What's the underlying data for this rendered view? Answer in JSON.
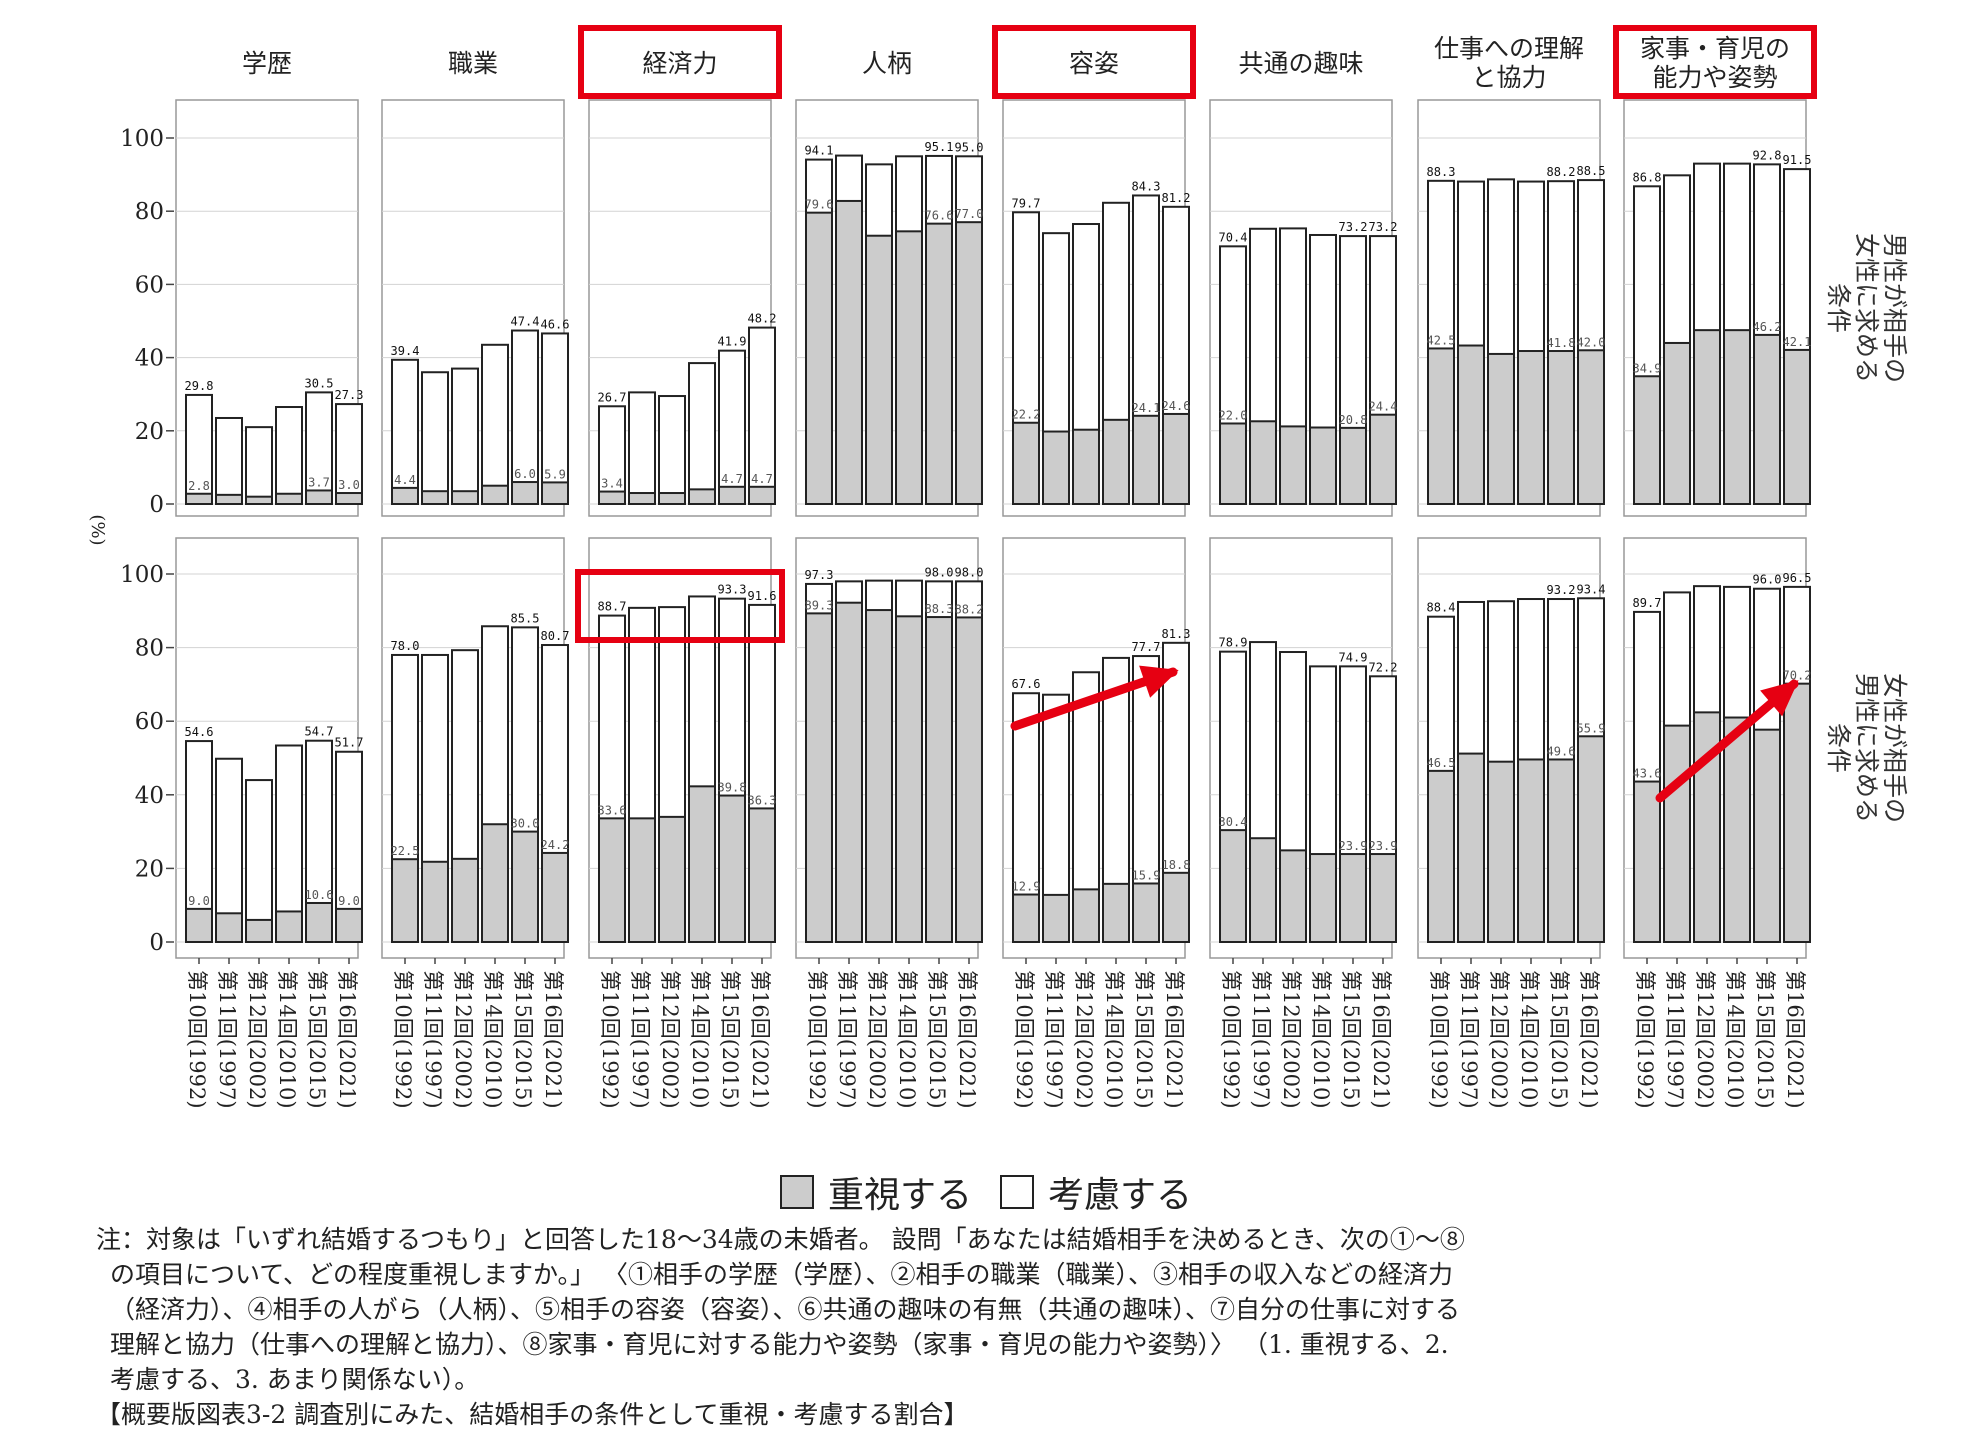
{
  "chart_data": {
    "type": "bar",
    "y_axis_label": "(%)",
    "ylim": [
      0,
      110
    ],
    "y_ticks": [
      0,
      20,
      40,
      60,
      80,
      100
    ],
    "x_categories": [
      "第10回(1992)",
      "第11回(1997)",
      "第12回(2002)",
      "第14回(2010)",
      "第15回(2015)",
      "第16回(2021)"
    ],
    "panels": [
      {
        "label": "学歴",
        "highlighted": false
      },
      {
        "label": "職業",
        "highlighted": false
      },
      {
        "label": "経済力",
        "highlighted": true
      },
      {
        "label": "人柄",
        "highlighted": false
      },
      {
        "label": "容姿",
        "highlighted": true
      },
      {
        "label": "共通の趣味",
        "highlighted": false
      },
      {
        "label": "仕事への理解\nと協力",
        "highlighted": false
      },
      {
        "label": "家事・育児の\n能力や姿勢",
        "highlighted": true
      }
    ],
    "rows": [
      {
        "label": "男性が相手の\n女性に求める\n条件",
        "panels": [
          {
            "considered": [
              29.8,
              23.5,
              21.0,
              26.5,
              30.5,
              27.3
            ],
            "emphasized": [
              2.8,
              2.5,
              2.0,
              2.8,
              3.7,
              3.0
            ],
            "consider_labels": [
              "29.8",
              "",
              "",
              "",
              "30.5",
              "27.3"
            ],
            "emphasize_labels": [
              "2.8",
              "",
              "",
              "",
              "3.7",
              "3.0"
            ]
          },
          {
            "considered": [
              39.4,
              36.0,
              37.0,
              43.5,
              47.4,
              46.6
            ],
            "emphasized": [
              4.4,
              3.5,
              3.5,
              5.0,
              6.0,
              5.9
            ],
            "consider_labels": [
              "39.4",
              "",
              "",
              "",
              "47.4",
              "46.6"
            ],
            "emphasize_labels": [
              "4.4",
              "",
              "",
              "",
              "6.0",
              "5.9"
            ]
          },
          {
            "considered": [
              26.7,
              30.5,
              29.5,
              38.5,
              41.9,
              48.2
            ],
            "emphasized": [
              3.4,
              3.0,
              3.0,
              4.0,
              4.7,
              4.7
            ],
            "consider_labels": [
              "26.7",
              "",
              "",
              "",
              "41.9",
              "48.2"
            ],
            "emphasize_labels": [
              "3.4",
              "",
              "",
              "",
              "4.7",
              "4.7"
            ]
          },
          {
            "considered": [
              94.1,
              95.2,
              92.8,
              95.0,
              95.1,
              95.0
            ],
            "emphasized": [
              79.6,
              82.8,
              73.3,
              74.5,
              76.6,
              77.0
            ],
            "consider_labels": [
              "94.1",
              "",
              "",
              "",
              "95.1",
              "95.0"
            ],
            "emphasize_labels": [
              "79.6",
              "",
              "",
              "",
              "76.6",
              "77.0"
            ]
          },
          {
            "considered": [
              79.7,
              74.0,
              76.5,
              82.3,
              84.3,
              81.2
            ],
            "emphasized": [
              22.2,
              19.8,
              20.3,
              23.0,
              24.1,
              24.6
            ],
            "consider_labels": [
              "79.7",
              "",
              "",
              "",
              "84.3",
              "81.2"
            ],
            "emphasize_labels": [
              "22.2",
              "",
              "",
              "",
              "24.1",
              "24.6"
            ]
          },
          {
            "considered": [
              70.4,
              75.2,
              75.3,
              73.5,
              73.2,
              73.2
            ],
            "emphasized": [
              22.0,
              22.6,
              21.2,
              20.9,
              20.8,
              24.4
            ],
            "consider_labels": [
              "70.4",
              "",
              "",
              "",
              "73.2",
              "73.2"
            ],
            "emphasize_labels": [
              "22.0",
              "",
              "",
              "",
              "20.8",
              "24.4"
            ]
          },
          {
            "considered": [
              88.3,
              88.1,
              88.7,
              88.1,
              88.2,
              88.5
            ],
            "emphasized": [
              42.5,
              43.3,
              41.0,
              41.8,
              41.8,
              42.0
            ],
            "consider_labels": [
              "88.3",
              "",
              "",
              "",
              "88.2",
              "88.5"
            ],
            "emphasize_labels": [
              "42.5",
              "",
              "",
              "",
              "41.8",
              "42.0"
            ]
          },
          {
            "considered": [
              86.8,
              89.8,
              93.0,
              93.0,
              92.8,
              91.5
            ],
            "emphasized": [
              34.9,
              44.0,
              47.5,
              47.5,
              46.2,
              42.1
            ],
            "consider_labels": [
              "86.8",
              "",
              "",
              "",
              "92.8",
              "91.5"
            ],
            "emphasize_labels": [
              "34.9",
              "",
              "",
              "",
              "46.2",
              "42.1"
            ]
          }
        ]
      },
      {
        "label": "女性が相手の\n男性に求める\n条件",
        "panels": [
          {
            "considered": [
              54.6,
              49.8,
              44.0,
              53.4,
              54.7,
              51.7
            ],
            "emphasized": [
              9.0,
              7.8,
              6.0,
              8.3,
              10.6,
              9.0
            ],
            "consider_labels": [
              "54.6",
              "",
              "",
              "",
              "54.7",
              "51.7"
            ],
            "emphasize_labels": [
              "9.0",
              "",
              "",
              "",
              "10.6",
              "9.0"
            ]
          },
          {
            "considered": [
              78.0,
              78.0,
              79.3,
              85.8,
              85.5,
              80.7
            ],
            "emphasized": [
              22.5,
              21.8,
              22.6,
              32.0,
              30.0,
              24.2
            ],
            "consider_labels": [
              "78.0",
              "",
              "",
              "",
              "85.5",
              "80.7"
            ],
            "emphasize_labels": [
              "22.5",
              "",
              "",
              "",
              "30.0",
              "24.2"
            ]
          },
          {
            "considered": [
              88.7,
              90.8,
              91.0,
              93.9,
              93.3,
              91.6
            ],
            "emphasized": [
              33.6,
              33.6,
              34.0,
              42.3,
              39.8,
              36.3
            ],
            "consider_labels": [
              "88.7",
              "",
              "",
              "",
              "93.3",
              "91.6"
            ],
            "emphasize_labels": [
              "33.6",
              "",
              "",
              "",
              "39.8",
              "36.3"
            ]
          },
          {
            "considered": [
              97.3,
              98.0,
              98.2,
              98.2,
              98.0,
              98.0
            ],
            "emphasized": [
              89.3,
              92.2,
              90.2,
              88.5,
              88.3,
              88.2
            ],
            "consider_labels": [
              "97.3",
              "",
              "",
              "",
              "98.0",
              "98.0"
            ],
            "emphasize_labels": [
              "89.3",
              "",
              "",
              "",
              "88.3",
              "88.2"
            ]
          },
          {
            "considered": [
              67.6,
              67.2,
              73.3,
              77.2,
              77.7,
              81.3
            ],
            "emphasized": [
              12.9,
              12.8,
              14.3,
              15.8,
              15.9,
              18.8
            ],
            "consider_labels": [
              "67.6",
              "",
              "",
              "",
              "77.7",
              "81.3"
            ],
            "emphasize_labels": [
              "12.9",
              "",
              "",
              "",
              "15.9",
              "18.8"
            ]
          },
          {
            "considered": [
              78.9,
              81.5,
              78.8,
              74.9,
              74.9,
              72.2
            ],
            "emphasized": [
              30.4,
              28.2,
              24.9,
              23.9,
              23.9,
              23.9
            ],
            "consider_labels": [
              "78.9",
              "",
              "",
              "",
              "74.9",
              "72.2"
            ],
            "emphasize_labels": [
              "30.4",
              "",
              "",
              "",
              "23.9",
              "23.9"
            ]
          },
          {
            "considered": [
              88.4,
              92.4,
              92.6,
              93.2,
              93.2,
              93.4
            ],
            "emphasized": [
              46.5,
              51.2,
              49.0,
              49.6,
              49.6,
              55.9
            ],
            "consider_labels": [
              "88.4",
              "",
              "",
              "",
              "93.2",
              "93.4"
            ],
            "emphasize_labels": [
              "46.5",
              "",
              "",
              "",
              "49.6",
              "55.9"
            ]
          },
          {
            "considered": [
              89.7,
              95.0,
              96.7,
              96.5,
              96.0,
              96.5
            ],
            "emphasized": [
              43.6,
              58.8,
              62.4,
              61.0,
              57.7,
              70.2
            ],
            "consider_labels": [
              "89.7",
              "",
              "",
              "",
              "96.0",
              "96.5"
            ],
            "emphasize_labels": [
              "43.6",
              "",
              "",
              "",
              "",
              "70.2"
            ]
          }
        ]
      }
    ],
    "highlight_boxes": [
      {
        "row": 1,
        "panel": 2
      }
    ],
    "arrows": [
      {
        "row": 1,
        "panel": 4
      },
      {
        "row": 1,
        "panel": 7
      }
    ],
    "legend": [
      "重視する",
      "考慮する"
    ],
    "colors": {
      "emphasized": "#cccccc",
      "considered": "#ffffff",
      "highlight": "#e60012",
      "grid": "#d3d3d3",
      "frame": "#999999"
    }
  },
  "note": {
    "lines": [
      "注：対象は「いずれ結婚するつもり」と回答した18〜34歳の未婚者。 設問「あなたは結婚相手を決めるとき、次の①〜⑧",
      "の項目について、どの程度重視しますか。」 〈①相手の学歴（学歴）、②相手の職業（職業）、③相手の収入などの経済力",
      "（経済力）、④相手の人がら（人柄）、⑤相手の容姿（容姿）、⑥共通の趣味の有無（共通の趣味）、⑦自分の仕事に対する",
      "理解と協力（仕事への理解と協力）、⑧家事・育児に対する能力や姿勢（家事・育児の能力や姿勢）〉 （1. 重視する、2.",
      "考慮する、3. あまり関係ない）。",
      "【概要版図表3-2 調査別にみた、結婚相手の条件として重視・考慮する割合】"
    ]
  }
}
